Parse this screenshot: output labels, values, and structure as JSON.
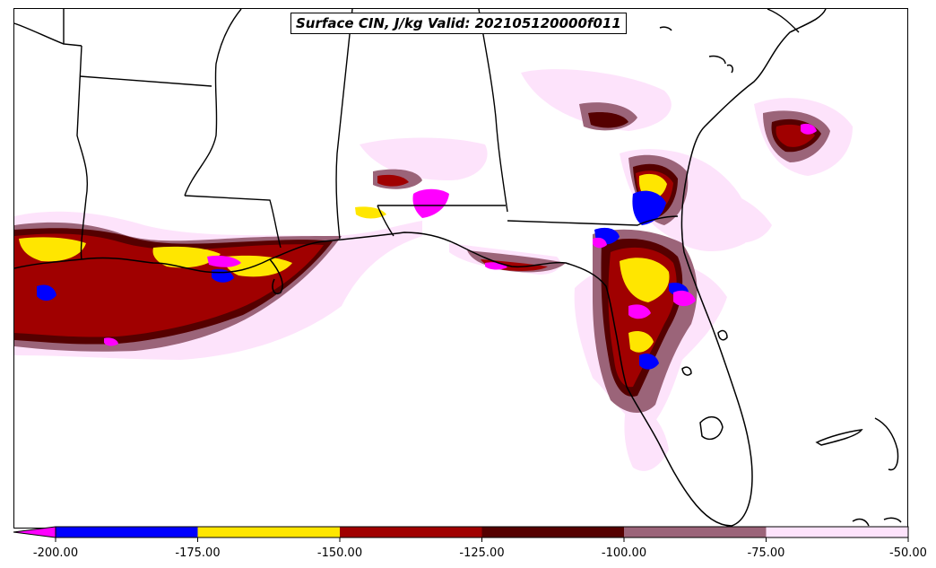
{
  "title": "Surface CIN, J/kg Valid: 202105120000f011",
  "colorbar": {
    "levels": [
      "-200.00",
      "-175.00",
      "-150.00",
      "-125.00",
      "-100.00",
      "-75.00",
      "-50.00"
    ],
    "under_color": "#ff00ff",
    "colors": [
      "#0000ff",
      "#ffe600",
      "#a00000",
      "#550000",
      "#9b6479",
      "#fde3fb"
    ]
  },
  "legend_colors": {
    "lt_-200": "#ff00ff",
    "-200_-175": "#0000ff",
    "-175_-150": "#ffe600",
    "-150_-125": "#a00000",
    "-125_-100": "#550000",
    "-100_-75": "#9b6479",
    "-75_-50": "#fde3fb"
  }
}
